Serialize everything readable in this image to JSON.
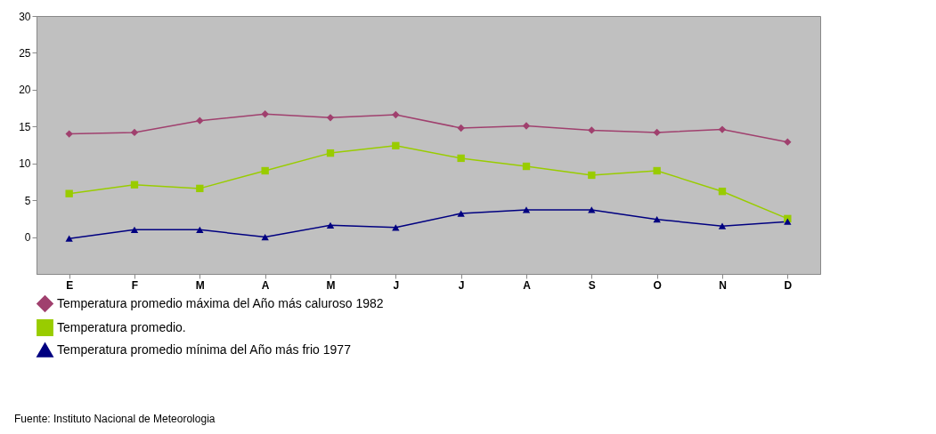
{
  "chart_data": {
    "type": "line",
    "categories": [
      "E",
      "F",
      "M",
      "A",
      "M",
      "J",
      "J",
      "A",
      "S",
      "O",
      "N",
      "D"
    ],
    "series": [
      {
        "name": "Temperatura promedio máxima del Año más caluroso 1982",
        "color": "#a0406e",
        "marker": "diamond",
        "values": [
          14.0,
          14.2,
          15.8,
          16.7,
          16.2,
          16.6,
          14.8,
          15.1,
          14.5,
          14.2,
          14.6,
          12.9
        ]
      },
      {
        "name": "Temperatura promedio.",
        "color": "#99cc00",
        "marker": "square",
        "values": [
          5.9,
          7.1,
          6.6,
          9.0,
          11.4,
          12.4,
          10.7,
          9.6,
          8.4,
          9.0,
          6.2,
          2.5
        ]
      },
      {
        "name": "Temperatura promedio mínima del Año más frio 1977",
        "color": "#000080",
        "marker": "triangle",
        "values": [
          -0.2,
          1.0,
          1.0,
          0.0,
          1.6,
          1.3,
          3.2,
          3.7,
          3.7,
          2.4,
          1.5,
          2.1
        ]
      }
    ],
    "ylim": [
      -5,
      30
    ],
    "yticks": [
      0,
      5,
      10,
      15,
      20,
      25,
      30
    ],
    "grid": false,
    "legend": "bottom",
    "annotations": [
      "Fuente: Instituto Nacional de Meteorologia"
    ]
  }
}
